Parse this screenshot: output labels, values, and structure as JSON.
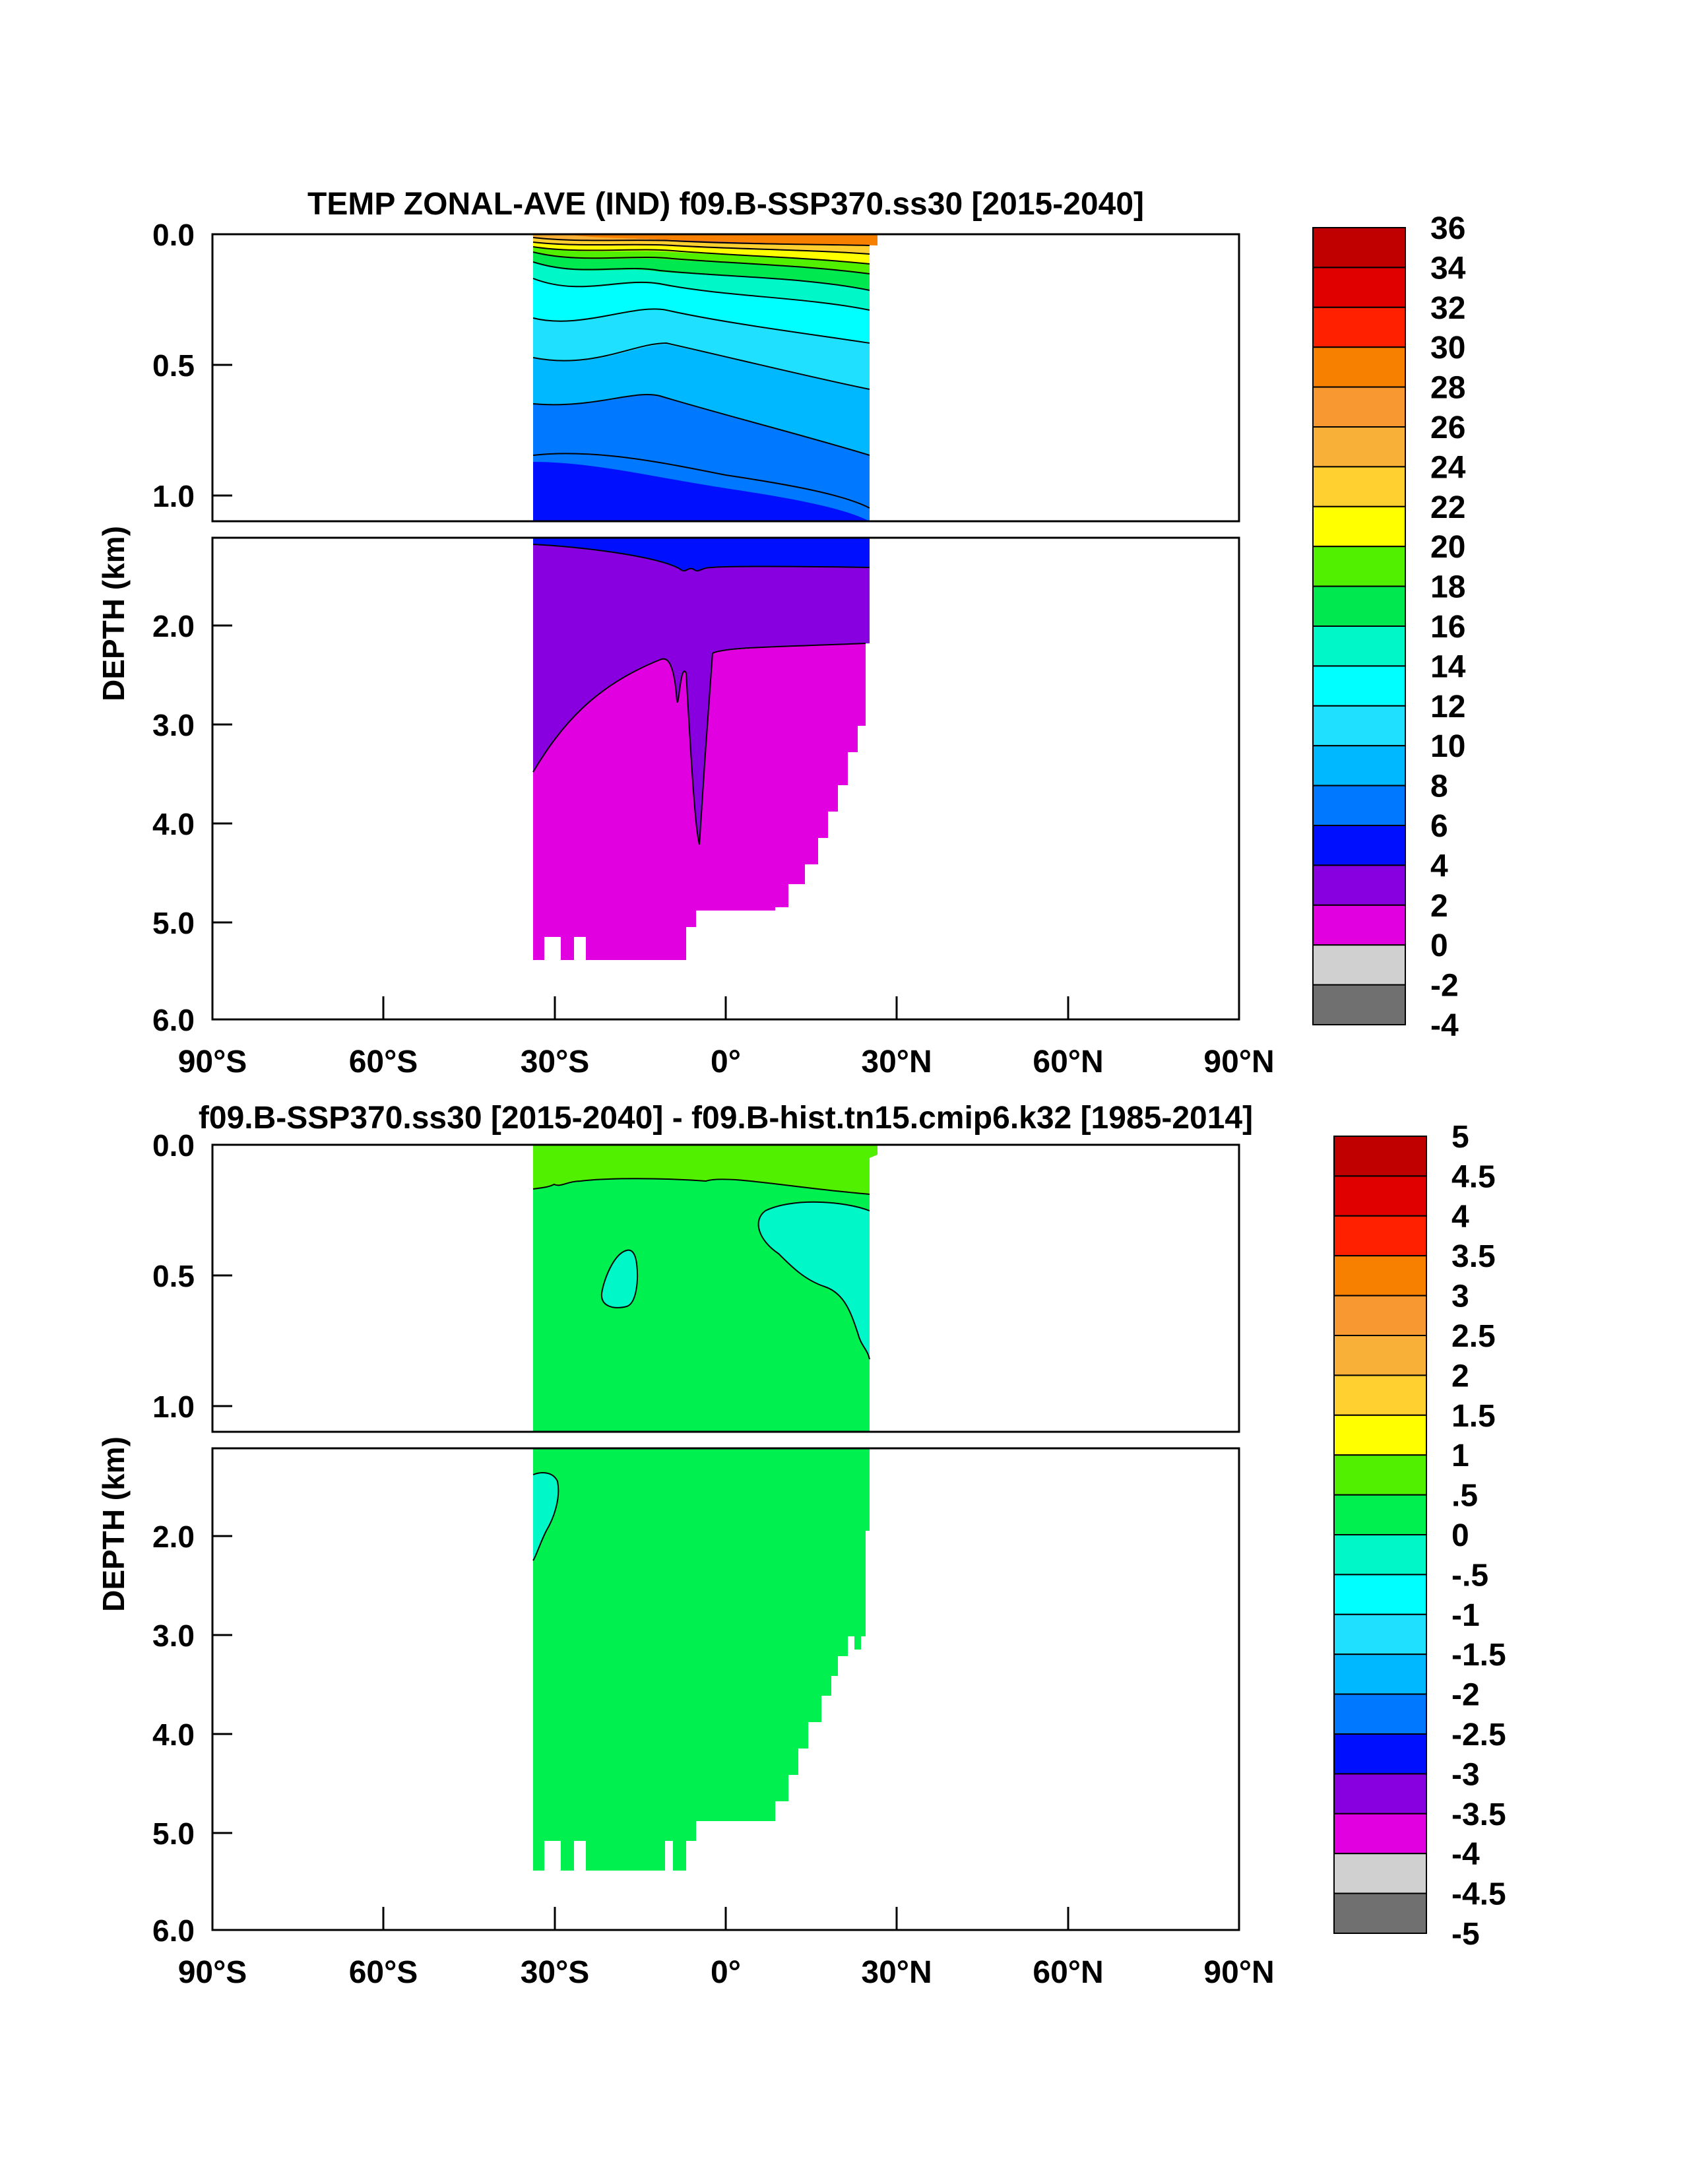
{
  "chart_data": [
    {
      "type": "heatmap",
      "title": "TEMP ZONAL-AVE (IND) f09.B-SSP370.ss30 [2015-2040]",
      "ylabel": "DEPTH (km)",
      "xlabel": "",
      "x_ticks": [
        {
          "value": -90,
          "label": "90°S"
        },
        {
          "value": -60,
          "label": "60°S"
        },
        {
          "value": -30,
          "label": "30°S"
        },
        {
          "value": 0,
          "label": "0°"
        },
        {
          "value": 30,
          "label": "30°N"
        },
        {
          "value": 60,
          "label": "60°N"
        },
        {
          "value": 90,
          "label": "90°N"
        }
      ],
      "y_ticks_upper": [
        {
          "value": 0.0,
          "label": "0.0"
        },
        {
          "value": 0.5,
          "label": "0.5"
        },
        {
          "value": 1.0,
          "label": "1.0"
        }
      ],
      "y_ticks_lower": [
        {
          "value": 2.0,
          "label": "2.0"
        },
        {
          "value": 3.0,
          "label": "3.0"
        },
        {
          "value": 4.0,
          "label": "4.0"
        },
        {
          "value": 5.0,
          "label": "5.0"
        },
        {
          "value": 6.0,
          "label": "6.0"
        }
      ],
      "xlim": [
        -90,
        90
      ],
      "ylim_upper": [
        0,
        1.1
      ],
      "ylim_lower": [
        1.1,
        6.0
      ],
      "colorbar": {
        "labels": [
          "36",
          "34",
          "32",
          "30",
          "28",
          "26",
          "24",
          "22",
          "20",
          "18",
          "16",
          "14",
          "12",
          "10",
          "8",
          "6",
          "4",
          "2",
          "0",
          "-2",
          "-4"
        ],
        "colors": [
          "#c00000",
          "#e00000",
          "#ff2000",
          "#f88000",
          "#f89830",
          "#f8b038",
          "#ffd030",
          "#ffff00",
          "#50f000",
          "#00e850",
          "#00f8c8",
          "#00ffff",
          "#20e0ff",
          "#00b8ff",
          "#0078ff",
          "#0010ff",
          "#8800e0",
          "#e000e0",
          "#d0d0d0",
          "#707070"
        ]
      },
      "field": {
        "land_mask_deep": true,
        "region_lat": [
          -34,
          25
        ],
        "surface_max": 28,
        "deep_value": 1,
        "contours": [
          {
            "level": 26,
            "depth_at": [
              [
                -34,
                0.02
              ],
              [
                -20,
                0.03
              ],
              [
                0,
                0.04
              ],
              [
                20,
                0.03
              ],
              [
                25,
                0.04
              ]
            ]
          },
          {
            "level": 24,
            "depth_at": [
              [
                -34,
                0.04
              ],
              [
                -20,
                0.06
              ],
              [
                0,
                0.07
              ],
              [
                20,
                0.06
              ],
              [
                25,
                0.08
              ]
            ]
          },
          {
            "level": 22,
            "depth_at": [
              [
                -34,
                0.07
              ],
              [
                -20,
                0.09
              ],
              [
                0,
                0.1
              ],
              [
                20,
                0.09
              ],
              [
                25,
                0.18
              ]
            ]
          },
          {
            "level": 20,
            "depth_at": [
              [
                -34,
                0.1
              ],
              [
                -20,
                0.12
              ],
              [
                0,
                0.12
              ],
              [
                20,
                0.11
              ],
              [
                25,
                0.22
              ]
            ]
          },
          {
            "level": 18,
            "depth_at": [
              [
                -34,
                0.13
              ],
              [
                -20,
                0.16
              ],
              [
                -10,
                0.12
              ],
              [
                0,
                0.13
              ],
              [
                20,
                0.16
              ],
              [
                25,
                0.26
              ]
            ]
          },
          {
            "level": 16,
            "depth_at": [
              [
                -34,
                0.17
              ],
              [
                -20,
                0.22
              ],
              [
                -10,
                0.18
              ],
              [
                0,
                0.18
              ],
              [
                20,
                0.23
              ],
              [
                25,
                0.32
              ]
            ]
          },
          {
            "level": 14,
            "depth_at": [
              [
                -34,
                0.22
              ],
              [
                -20,
                0.28
              ],
              [
                -10,
                0.2
              ],
              [
                0,
                0.24
              ],
              [
                20,
                0.3
              ],
              [
                25,
                0.38
              ]
            ]
          },
          {
            "level": 12,
            "depth_at": [
              [
                -34,
                0.3
              ],
              [
                -20,
                0.36
              ],
              [
                -10,
                0.28
              ],
              [
                0,
                0.33
              ],
              [
                20,
                0.4
              ],
              [
                25,
                0.48
              ]
            ]
          },
          {
            "level": 10,
            "depth_at": [
              [
                -34,
                0.42
              ],
              [
                -20,
                0.46
              ],
              [
                -10,
                0.38
              ],
              [
                0,
                0.44
              ],
              [
                20,
                0.52
              ],
              [
                25,
                0.56
              ]
            ]
          },
          {
            "level": 8,
            "depth_at": [
              [
                -34,
                0.62
              ],
              [
                -20,
                0.65
              ],
              [
                -10,
                0.58
              ],
              [
                0,
                0.64
              ],
              [
                20,
                0.72
              ],
              [
                25,
                0.78
              ]
            ]
          },
          {
            "level": 6,
            "depth_at": [
              [
                -34,
                0.84
              ],
              [
                -20,
                0.82
              ],
              [
                -10,
                0.8
              ],
              [
                0,
                0.92
              ],
              [
                20,
                1.02
              ],
              [
                25,
                1.08
              ]
            ]
          },
          {
            "level": 4,
            "depth_at": [
              [
                -34,
                1.22
              ],
              [
                -20,
                1.2
              ],
              [
                -10,
                1.28
              ],
              [
                0,
                1.32
              ],
              [
                20,
                1.3
              ],
              [
                25,
                1.3
              ]
            ]
          },
          {
            "level": 2,
            "depth_at": [
              [
                -34,
                3.5
              ],
              [
                -25,
                2.8
              ],
              [
                -15,
                2.3
              ],
              [
                0,
                2.2
              ],
              [
                20,
                2.1
              ],
              [
                25,
                2.1
              ]
            ]
          }
        ]
      }
    },
    {
      "type": "heatmap",
      "title": "f09.B-SSP370.ss30 [2015-2040] - f09.B-hist.tn15.cmip6.k32 [1985-2014]",
      "ylabel": "DEPTH (km)",
      "xlabel": "",
      "x_ticks": [
        {
          "value": -90,
          "label": "90°S"
        },
        {
          "value": -60,
          "label": "60°S"
        },
        {
          "value": -30,
          "label": "30°S"
        },
        {
          "value": 0,
          "label": "0°"
        },
        {
          "value": 30,
          "label": "30°N"
        },
        {
          "value": 60,
          "label": "60°N"
        },
        {
          "value": 90,
          "label": "90°N"
        }
      ],
      "y_ticks_upper": [
        {
          "value": 0.0,
          "label": "0.0"
        },
        {
          "value": 0.5,
          "label": "0.5"
        },
        {
          "value": 1.0,
          "label": "1.0"
        }
      ],
      "y_ticks_lower": [
        {
          "value": 2.0,
          "label": "2.0"
        },
        {
          "value": 3.0,
          "label": "3.0"
        },
        {
          "value": 4.0,
          "label": "4.0"
        },
        {
          "value": 5.0,
          "label": "5.0"
        },
        {
          "value": 6.0,
          "label": "6.0"
        }
      ],
      "xlim": [
        -90,
        90
      ],
      "ylim_upper": [
        0,
        1.1
      ],
      "ylim_lower": [
        1.1,
        6.0
      ],
      "colorbar": {
        "labels": [
          "5",
          "4.5",
          "4",
          "3.5",
          "3",
          "2.5",
          "2",
          "1.5",
          "1",
          ".5",
          "0",
          "-.5",
          "-1",
          "-1.5",
          "-2",
          "-2.5",
          "-3",
          "-3.5",
          "-4",
          "-4.5",
          "-5"
        ],
        "colors": [
          "#c00000",
          "#e00000",
          "#ff2000",
          "#f88000",
          "#f89830",
          "#f8b038",
          "#ffd030",
          "#ffff00",
          "#50f000",
          "#00f050",
          "#00f8c8",
          "#00ffff",
          "#20e0ff",
          "#00b8ff",
          "#0078ff",
          "#0010ff",
          "#8800e0",
          "#e000e0",
          "#d0d0d0",
          "#707070"
        ]
      },
      "field": {
        "region_lat": [
          -34,
          25
        ],
        "background_value": 0.25,
        "surface_band": {
          "value": 0.75,
          "depth": 0.15
        },
        "negative_blobs": [
          {
            "lat": -18,
            "depth": 0.55,
            "value": -0.25
          },
          {
            "lat": 20,
            "depth": 0.35,
            "value": -0.25
          },
          {
            "lat": -32,
            "depth": 1.8,
            "value": -0.25
          }
        ]
      }
    }
  ]
}
